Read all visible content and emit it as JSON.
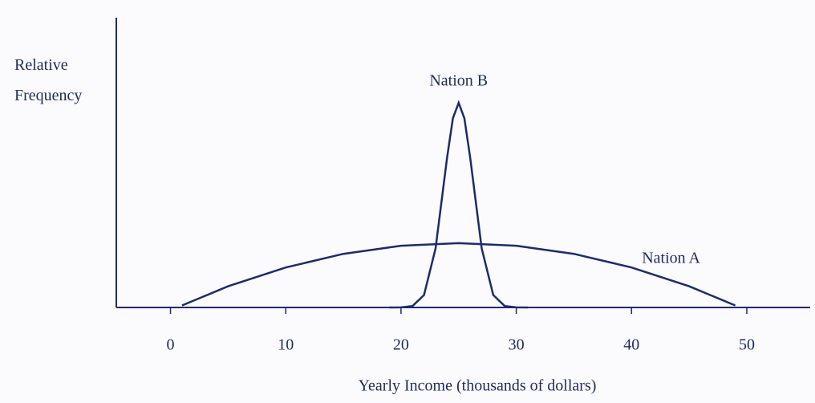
{
  "chart_data": {
    "type": "line",
    "y_label": "Relative Frequency",
    "x_label": "Yearly Income (thousands of dollars)",
    "color": "#1f2a6b",
    "xlim": [
      -4.7,
      55.5
    ],
    "xticks": [
      0,
      10,
      20,
      30,
      40,
      50
    ],
    "ylim": [
      0,
      100
    ],
    "series": [
      {
        "name": "Nation A",
        "x": [
          1,
          5,
          10,
          15,
          20,
          25,
          30,
          35,
          40,
          45,
          49
        ],
        "values": [
          0.7,
          7.3,
          13.8,
          18.5,
          21.3,
          22.2,
          21.3,
          18.5,
          13.8,
          7.3,
          0.7
        ]
      },
      {
        "name": "Nation B",
        "x": [
          19,
          20,
          21,
          22,
          23,
          24,
          24.5,
          25,
          25.5,
          26,
          27,
          28,
          29,
          30,
          31
        ],
        "values": [
          0,
          0.03,
          0.5,
          4.3,
          20.4,
          51.8,
          65.3,
          70.6,
          65.3,
          51.8,
          20.4,
          4.3,
          0.5,
          0.03,
          0
        ]
      }
    ]
  }
}
